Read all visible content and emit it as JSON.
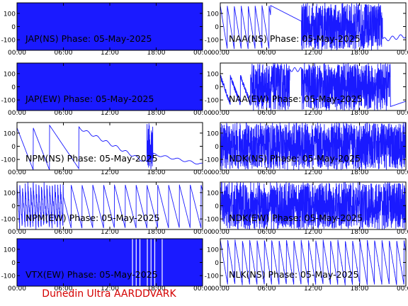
{
  "footer": "Dunedin Ultra AARDDVARK",
  "colors": {
    "trace": "#1a1aff",
    "axis": "#000000",
    "footer": "#d40000"
  },
  "chart_data": [
    {
      "type": "line",
      "title": "JAP(NS) Phase: 05-May-2025",
      "pattern": "dense",
      "x_ticks": [
        "00:00",
        "06:00",
        "12:00",
        "18:00",
        "00:00"
      ],
      "y_ticks": [
        100,
        0,
        -100
      ],
      "xlim": [
        "00:00",
        "24:00"
      ],
      "ylim": [
        -180,
        180
      ]
    },
    {
      "type": "line",
      "title": "NAA(NS) Phase: 05-May-2025",
      "pattern": "naa_ns",
      "x_ticks": [
        "00:00",
        "06:00",
        "12:00",
        "18:00",
        "00:00"
      ],
      "y_ticks": [
        100,
        0,
        -100
      ],
      "xlim": [
        "00:00",
        "24:00"
      ],
      "ylim": [
        -180,
        180
      ]
    },
    {
      "type": "line",
      "title": "JAP(EW) Phase: 05-May-2025",
      "pattern": "dense",
      "x_ticks": [
        "00:00",
        "06:00",
        "12:00",
        "18:00",
        "00:00"
      ],
      "y_ticks": [
        100,
        0,
        -100
      ],
      "xlim": [
        "00:00",
        "24:00"
      ],
      "ylim": [
        -180,
        180
      ]
    },
    {
      "type": "line",
      "title": "NAA(EW) Phase: 05-May-2025",
      "pattern": "naa_ew",
      "x_ticks": [
        "00:00",
        "06:00",
        "12:00",
        "18:00",
        "00:00"
      ],
      "y_ticks": [
        100,
        0,
        -100
      ],
      "xlim": [
        "00:00",
        "24:00"
      ],
      "ylim": [
        -180,
        180
      ]
    },
    {
      "type": "line",
      "title": "NPM(NS) Phase: 05-May-2025",
      "pattern": "npm_ns",
      "x_ticks": [
        "00:00",
        "06:00",
        "12:00",
        "18:00",
        "00:00"
      ],
      "y_ticks": [
        100,
        0,
        -100
      ],
      "xlim": [
        "00:00",
        "24:00"
      ],
      "ylim": [
        -180,
        180
      ]
    },
    {
      "type": "line",
      "title": "NDK(NS) Phase: 05-May-2025",
      "pattern": "noisy",
      "x_ticks": [
        "00:00",
        "06:00",
        "12:00",
        "18:00",
        "00:00"
      ],
      "y_ticks": [
        100,
        0,
        -100
      ],
      "xlim": [
        "00:00",
        "24:00"
      ],
      "ylim": [
        -180,
        180
      ]
    },
    {
      "type": "line",
      "title": "NPM(EW) Phase: 05-May-2025",
      "pattern": "npm_ew",
      "x_ticks": [
        "00:00",
        "06:00",
        "12:00",
        "18:00",
        "00:00"
      ],
      "y_ticks": [
        100,
        0,
        -100
      ],
      "xlim": [
        "00:00",
        "24:00"
      ],
      "ylim": [
        -180,
        180
      ]
    },
    {
      "type": "line",
      "title": "NDK(EW) Phase: 05-May-2025",
      "pattern": "noisy",
      "x_ticks": [
        "00:00",
        "06:00",
        "12:00",
        "18:00",
        "00:00"
      ],
      "y_ticks": [
        100,
        0,
        -100
      ],
      "xlim": [
        "00:00",
        "24:00"
      ],
      "ylim": [
        -180,
        180
      ]
    },
    {
      "type": "line",
      "title": "VTX(EW) Phase: 05-May-2025",
      "pattern": "vtx",
      "x_ticks": [
        "00:00",
        "06:00",
        "12:00",
        "18:00",
        "00:00"
      ],
      "y_ticks": [
        100,
        0,
        -100
      ],
      "xlim": [
        "00:00",
        "24:00"
      ],
      "ylim": [
        -180,
        180
      ]
    },
    {
      "type": "line",
      "title": "NLK(NS) Phase: 05-May-2025",
      "pattern": "nlk",
      "x_ticks": [
        "00:00",
        "06:00",
        "12:00",
        "18:00",
        "00:00"
      ],
      "y_ticks": [
        100,
        0,
        -100
      ],
      "xlim": [
        "00:00",
        "24:00"
      ],
      "ylim": [
        -180,
        180
      ]
    }
  ]
}
